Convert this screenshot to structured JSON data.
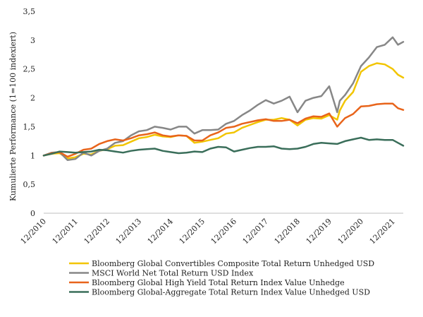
{
  "chart_data": {
    "type": "line",
    "title": "",
    "xlabel": "",
    "ylabel": "Kumulierte Performance (1=100 indexiert)",
    "ylim": [
      0,
      3.5
    ],
    "yticks": [
      {
        "value": 0,
        "label": "0"
      },
      {
        "value": 0.5,
        "label": "0,5"
      },
      {
        "value": 1,
        "label": "1"
      },
      {
        "value": 1.5,
        "label": "1,5"
      },
      {
        "value": 2,
        "label": "2"
      },
      {
        "value": 2.5,
        "label": "2,5"
      },
      {
        "value": 3,
        "label": "3"
      },
      {
        "value": 3.5,
        "label": "3,5"
      }
    ],
    "xlim": [
      "2010-12",
      "2022-04"
    ],
    "xticks": [
      "12/2010",
      "12/2011",
      "12/2012",
      "12/2013",
      "12/2014",
      "12/2015",
      "12/2016",
      "12/2017",
      "12/2018",
      "12/2019",
      "12/2020",
      "12/2021"
    ],
    "grid": false,
    "legend_position": "bottom",
    "series": [
      {
        "name": "Bloomberg Global Convertibles Composite Total Return Unhedged USD",
        "color": "#f2c500",
        "points": [
          [
            "2010-12",
            1.0
          ],
          [
            "2011-03",
            1.03
          ],
          [
            "2011-06",
            1.04
          ],
          [
            "2011-09",
            0.95
          ],
          [
            "2011-12",
            0.97
          ],
          [
            "2012-03",
            1.03
          ],
          [
            "2012-06",
            1.02
          ],
          [
            "2012-09",
            1.08
          ],
          [
            "2012-12",
            1.11
          ],
          [
            "2013-03",
            1.17
          ],
          [
            "2013-06",
            1.18
          ],
          [
            "2013-09",
            1.24
          ],
          [
            "2013-12",
            1.3
          ],
          [
            "2014-03",
            1.32
          ],
          [
            "2014-06",
            1.36
          ],
          [
            "2014-09",
            1.33
          ],
          [
            "2014-12",
            1.32
          ],
          [
            "2015-03",
            1.35
          ],
          [
            "2015-06",
            1.34
          ],
          [
            "2015-09",
            1.22
          ],
          [
            "2015-12",
            1.24
          ],
          [
            "2016-03",
            1.27
          ],
          [
            "2016-06",
            1.3
          ],
          [
            "2016-09",
            1.38
          ],
          [
            "2016-12",
            1.4
          ],
          [
            "2017-03",
            1.48
          ],
          [
            "2017-06",
            1.53
          ],
          [
            "2017-09",
            1.58
          ],
          [
            "2017-12",
            1.62
          ],
          [
            "2018-03",
            1.62
          ],
          [
            "2018-06",
            1.65
          ],
          [
            "2018-09",
            1.62
          ],
          [
            "2018-12",
            1.52
          ],
          [
            "2019-03",
            1.62
          ],
          [
            "2019-06",
            1.65
          ],
          [
            "2019-09",
            1.64
          ],
          [
            "2019-12",
            1.7
          ],
          [
            "2020-03",
            1.62
          ],
          [
            "2020-04",
            1.78
          ],
          [
            "2020-06",
            1.95
          ],
          [
            "2020-09",
            2.1
          ],
          [
            "2020-12",
            2.45
          ],
          [
            "2021-03",
            2.55
          ],
          [
            "2021-06",
            2.6
          ],
          [
            "2021-09",
            2.58
          ],
          [
            "2021-12",
            2.5
          ],
          [
            "2022-02",
            2.4
          ],
          [
            "2022-04",
            2.35
          ]
        ]
      },
      {
        "name": "MSCI World Net Total Return USD Index",
        "color": "#878787",
        "points": [
          [
            "2010-12",
            1.0
          ],
          [
            "2011-03",
            1.05
          ],
          [
            "2011-06",
            1.06
          ],
          [
            "2011-09",
            0.92
          ],
          [
            "2011-12",
            0.94
          ],
          [
            "2012-03",
            1.05
          ],
          [
            "2012-06",
            1.0
          ],
          [
            "2012-09",
            1.08
          ],
          [
            "2012-12",
            1.12
          ],
          [
            "2013-03",
            1.22
          ],
          [
            "2013-06",
            1.25
          ],
          [
            "2013-09",
            1.35
          ],
          [
            "2013-12",
            1.42
          ],
          [
            "2014-03",
            1.44
          ],
          [
            "2014-06",
            1.5
          ],
          [
            "2014-09",
            1.48
          ],
          [
            "2014-12",
            1.45
          ],
          [
            "2015-03",
            1.5
          ],
          [
            "2015-06",
            1.5
          ],
          [
            "2015-09",
            1.38
          ],
          [
            "2015-12",
            1.44
          ],
          [
            "2016-03",
            1.44
          ],
          [
            "2016-06",
            1.45
          ],
          [
            "2016-09",
            1.55
          ],
          [
            "2016-12",
            1.6
          ],
          [
            "2017-03",
            1.7
          ],
          [
            "2017-06",
            1.78
          ],
          [
            "2017-09",
            1.88
          ],
          [
            "2017-12",
            1.96
          ],
          [
            "2018-03",
            1.9
          ],
          [
            "2018-06",
            1.95
          ],
          [
            "2018-09",
            2.02
          ],
          [
            "2018-12",
            1.75
          ],
          [
            "2019-03",
            1.95
          ],
          [
            "2019-06",
            2.0
          ],
          [
            "2019-09",
            2.03
          ],
          [
            "2019-12",
            2.2
          ],
          [
            "2020-03",
            1.75
          ],
          [
            "2020-04",
            1.95
          ],
          [
            "2020-06",
            2.05
          ],
          [
            "2020-09",
            2.25
          ],
          [
            "2020-12",
            2.55
          ],
          [
            "2021-03",
            2.7
          ],
          [
            "2021-06",
            2.88
          ],
          [
            "2021-09",
            2.92
          ],
          [
            "2021-12",
            3.05
          ],
          [
            "2022-02",
            2.92
          ],
          [
            "2022-04",
            2.97
          ]
        ]
      },
      {
        "name": "Bloomberg Global High Yield Total Return Index Value Unhedge",
        "color": "#e8641b",
        "points": [
          [
            "2010-12",
            1.0
          ],
          [
            "2011-03",
            1.04
          ],
          [
            "2011-06",
            1.06
          ],
          [
            "2011-09",
            0.98
          ],
          [
            "2011-12",
            1.03
          ],
          [
            "2012-03",
            1.1
          ],
          [
            "2012-06",
            1.12
          ],
          [
            "2012-09",
            1.2
          ],
          [
            "2012-12",
            1.25
          ],
          [
            "2013-03",
            1.28
          ],
          [
            "2013-06",
            1.26
          ],
          [
            "2013-09",
            1.3
          ],
          [
            "2013-12",
            1.35
          ],
          [
            "2014-03",
            1.37
          ],
          [
            "2014-06",
            1.4
          ],
          [
            "2014-09",
            1.35
          ],
          [
            "2014-12",
            1.33
          ],
          [
            "2015-03",
            1.35
          ],
          [
            "2015-06",
            1.34
          ],
          [
            "2015-09",
            1.26
          ],
          [
            "2015-12",
            1.26
          ],
          [
            "2016-03",
            1.35
          ],
          [
            "2016-06",
            1.4
          ],
          [
            "2016-09",
            1.48
          ],
          [
            "2016-12",
            1.5
          ],
          [
            "2017-03",
            1.55
          ],
          [
            "2017-06",
            1.58
          ],
          [
            "2017-09",
            1.61
          ],
          [
            "2017-12",
            1.63
          ],
          [
            "2018-03",
            1.6
          ],
          [
            "2018-06",
            1.6
          ],
          [
            "2018-09",
            1.62
          ],
          [
            "2018-12",
            1.56
          ],
          [
            "2019-03",
            1.64
          ],
          [
            "2019-06",
            1.68
          ],
          [
            "2019-09",
            1.67
          ],
          [
            "2019-12",
            1.73
          ],
          [
            "2020-03",
            1.5
          ],
          [
            "2020-04",
            1.55
          ],
          [
            "2020-06",
            1.65
          ],
          [
            "2020-09",
            1.72
          ],
          [
            "2020-12",
            1.85
          ],
          [
            "2021-03",
            1.86
          ],
          [
            "2021-06",
            1.89
          ],
          [
            "2021-09",
            1.9
          ],
          [
            "2021-12",
            1.9
          ],
          [
            "2022-02",
            1.82
          ],
          [
            "2022-04",
            1.79
          ]
        ]
      },
      {
        "name": "Bloomberg Global-Aggregate Total Return Index Value Unhedged USD",
        "color": "#3a6e5a",
        "points": [
          [
            "2010-12",
            1.0
          ],
          [
            "2011-03",
            1.03
          ],
          [
            "2011-06",
            1.07
          ],
          [
            "2011-09",
            1.06
          ],
          [
            "2011-12",
            1.05
          ],
          [
            "2012-03",
            1.06
          ],
          [
            "2012-06",
            1.07
          ],
          [
            "2012-09",
            1.1
          ],
          [
            "2012-12",
            1.09
          ],
          [
            "2013-03",
            1.07
          ],
          [
            "2013-06",
            1.05
          ],
          [
            "2013-09",
            1.08
          ],
          [
            "2013-12",
            1.1
          ],
          [
            "2014-03",
            1.11
          ],
          [
            "2014-06",
            1.12
          ],
          [
            "2014-09",
            1.08
          ],
          [
            "2014-12",
            1.06
          ],
          [
            "2015-03",
            1.04
          ],
          [
            "2015-06",
            1.05
          ],
          [
            "2015-09",
            1.07
          ],
          [
            "2015-12",
            1.06
          ],
          [
            "2016-03",
            1.12
          ],
          [
            "2016-06",
            1.15
          ],
          [
            "2016-09",
            1.14
          ],
          [
            "2016-12",
            1.07
          ],
          [
            "2017-03",
            1.1
          ],
          [
            "2017-06",
            1.13
          ],
          [
            "2017-09",
            1.15
          ],
          [
            "2017-12",
            1.15
          ],
          [
            "2018-03",
            1.16
          ],
          [
            "2018-06",
            1.12
          ],
          [
            "2018-09",
            1.11
          ],
          [
            "2018-12",
            1.12
          ],
          [
            "2019-03",
            1.15
          ],
          [
            "2019-06",
            1.2
          ],
          [
            "2019-09",
            1.22
          ],
          [
            "2019-12",
            1.21
          ],
          [
            "2020-03",
            1.2
          ],
          [
            "2020-06",
            1.25
          ],
          [
            "2020-09",
            1.28
          ],
          [
            "2020-12",
            1.31
          ],
          [
            "2021-03",
            1.27
          ],
          [
            "2021-06",
            1.28
          ],
          [
            "2021-09",
            1.27
          ],
          [
            "2021-12",
            1.27
          ],
          [
            "2022-02",
            1.22
          ],
          [
            "2022-04",
            1.17
          ]
        ]
      }
    ]
  }
}
